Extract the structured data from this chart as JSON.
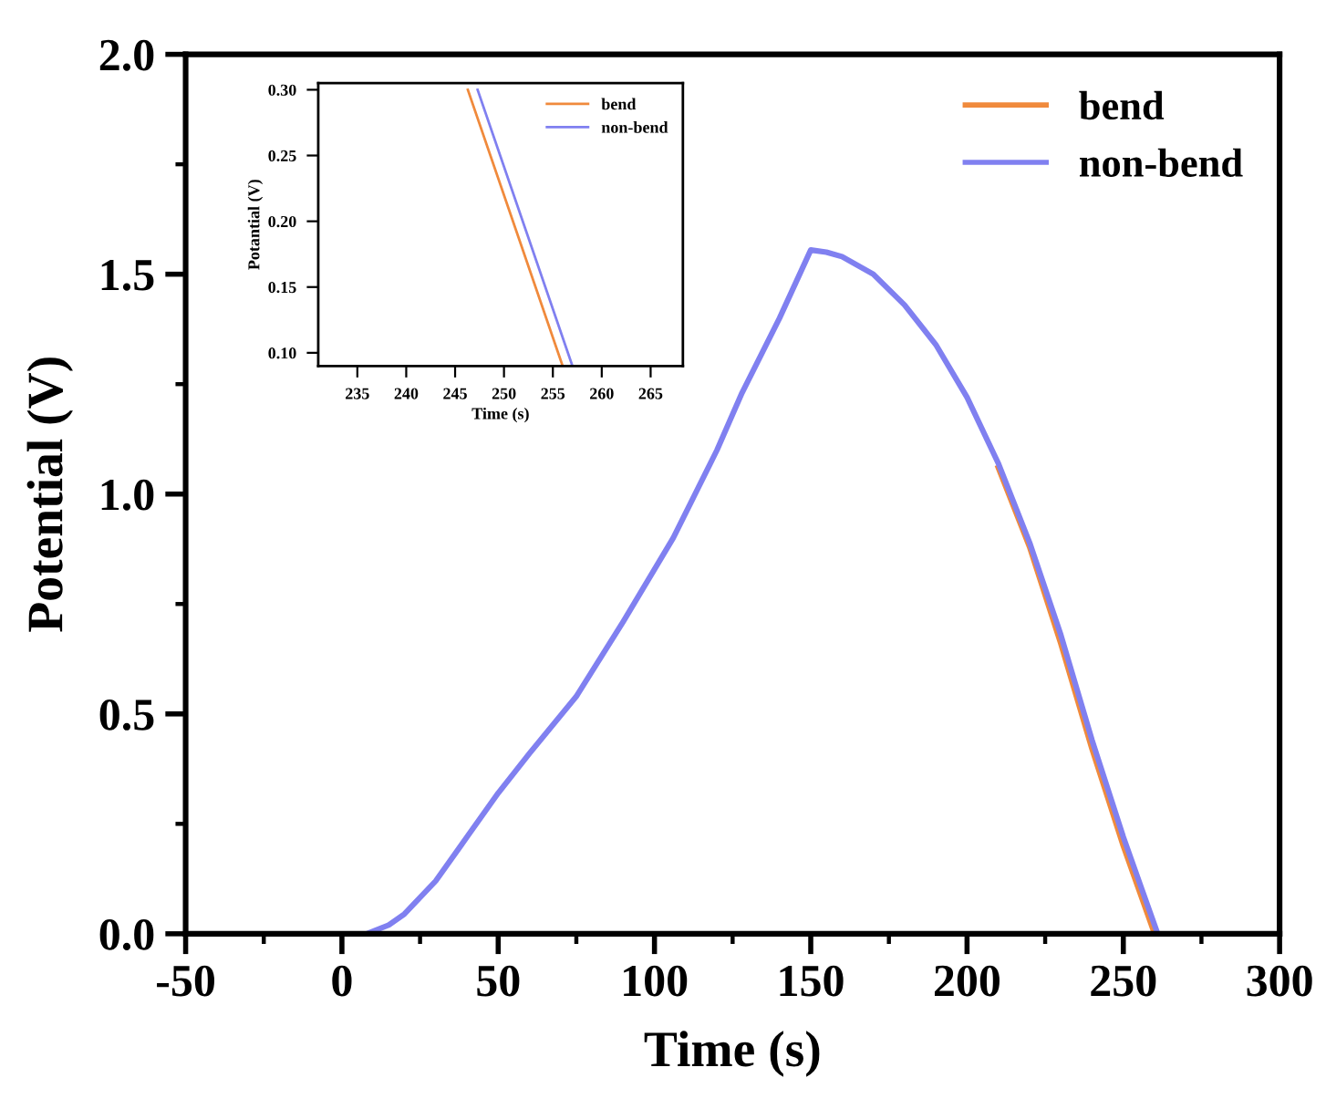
{
  "chart_data": [
    {
      "type": "line",
      "xlabel": "Time (s)",
      "ylabel": "Potential (V)",
      "xlim": [
        -50,
        300
      ],
      "ylim": [
        0,
        2.0
      ],
      "xticks": [
        -50,
        {
          "value": -25,
          "label": null
        },
        0,
        {
          "value": 25,
          "label": null
        },
        50,
        {
          "value": 75,
          "label": null
        },
        100,
        {
          "value": 125,
          "label": null
        },
        150,
        {
          "value": 175,
          "label": null
        },
        200,
        {
          "value": 225,
          "label": null
        },
        250,
        {
          "value": 275,
          "label": null
        },
        300
      ],
      "yticks": [
        {
          "value": 0,
          "label": "0.0"
        },
        {
          "value": 0.25,
          "label": null
        },
        {
          "value": 0.5,
          "label": "0.5"
        },
        {
          "value": 0.75,
          "label": null
        },
        {
          "value": 1.0,
          "label": "1.0"
        },
        {
          "value": 1.25,
          "label": null
        },
        {
          "value": 1.5,
          "label": "1.5"
        },
        {
          "value": 1.75,
          "label": null
        },
        {
          "value": 2.0,
          "label": "2.0"
        }
      ],
      "legend": "top right",
      "grid": false,
      "marker": "none",
      "line_style": "solid",
      "series": [
        {
          "name": "bend",
          "color": "#f08a3c",
          "x": [
            210,
            220,
            230,
            240,
            245,
            250,
            255,
            260
          ],
          "values": [
            1.06,
            0.88,
            0.66,
            0.42,
            0.31,
            0.2,
            0.1,
            0
          ]
        },
        {
          "name": "non-bend",
          "color": "#8080f0",
          "x": [
            8,
            15,
            20,
            30,
            40,
            50,
            60,
            75,
            90,
            106,
            120,
            128,
            140,
            150,
            155,
            160,
            170,
            180,
            190,
            200,
            210,
            220,
            230,
            240,
            245,
            250,
            256,
            261
          ],
          "values": [
            0,
            0.02,
            0.045,
            0.12,
            0.22,
            0.32,
            0.41,
            0.54,
            0.71,
            0.9,
            1.1,
            1.23,
            1.4,
            1.555,
            1.55,
            1.54,
            1.5,
            1.43,
            1.34,
            1.22,
            1.07,
            0.89,
            0.68,
            0.44,
            0.33,
            0.22,
            0.1,
            0
          ]
        }
      ]
    },
    {
      "type": "line",
      "xlabel": "Time (s)",
      "ylabel": "Potantial (V)",
      "xlim": [
        231,
        268.3
      ],
      "ylim": [
        0.09,
        0.305
      ],
      "xticks": [
        235,
        240,
        245,
        250,
        255,
        260,
        265
      ],
      "yticks": [
        {
          "value": 0.1,
          "label": "0.10"
        },
        {
          "value": 0.15,
          "label": "0.15"
        },
        {
          "value": 0.2,
          "label": "0.20"
        },
        {
          "value": 0.25,
          "label": "0.25"
        },
        {
          "value": 0.3,
          "label": "0.30"
        }
      ],
      "legend": "top right",
      "grid": false,
      "marker": "none",
      "line_style": "solid",
      "series": [
        {
          "name": "bend",
          "color": "#f08a3c",
          "x": [
            246.3,
            256
          ],
          "values": [
            0.3,
            0.09
          ]
        },
        {
          "name": "non-bend",
          "color": "#8080f0",
          "x": [
            247.3,
            257
          ],
          "values": [
            0.3,
            0.09
          ]
        }
      ]
    }
  ]
}
